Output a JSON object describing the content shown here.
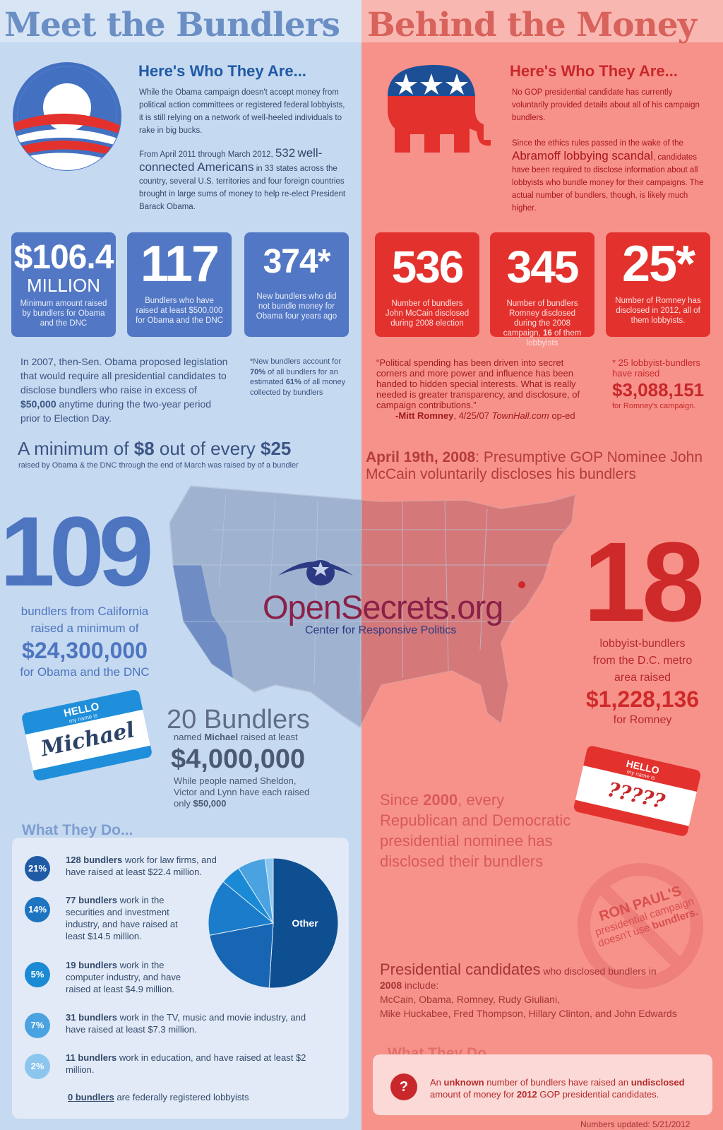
{
  "left": {
    "title": "Meet the Bundlers",
    "heading": "Here's Who They Are...",
    "intro_p1": "While the Obama campaign doesn't accept money from political action committees or registered federal lobbyists, it is still relying on a network of well-heeled individuals to rake in big bucks.",
    "intro_p2_pre": "From April 2011 through March 2012,",
    "intro_p2_num": "532",
    "intro_p2_emph": "well-connected Americans",
    "intro_p2_post": "in 33 states across the country, several U.S. territories and four foreign countries brought in large sums of money to help re-elect President Barack Obama.",
    "stats": [
      {
        "big": "$106.4",
        "sub": "MILLION",
        "desc": "Minimum amount raised by bundlers for Obama and the DNC"
      },
      {
        "big": "117",
        "sub": "",
        "desc": "Bundlers who have raised at least $500,000 for Obama and the DNC"
      },
      {
        "big": "374*",
        "sub": "",
        "desc": "New bundlers who did not bundle money for Obama four years ago"
      }
    ],
    "legislation_a": "In 2007, then-Sen. Obama proposed legislation that would require all presidential candidates to disclose bundlers who raise in excess of",
    "legislation_b": "$50,000",
    "legislation_c": "anytime during the two-year period prior to Election Day.",
    "footnote_a": "*New bundlers account for",
    "footnote_b": "70%",
    "footnote_c": "of all bundlers for an estimated",
    "footnote_d": "61%",
    "footnote_e": "of all money collected by bundlers",
    "minimum_a": "A minimum of",
    "minimum_b": "$8",
    "minimum_c": "out of every",
    "minimum_d": "$25",
    "minimum_sub": "raised by Obama & the DNC through the end of March was raised by of a bundler",
    "ca_big": "109",
    "ca_line1": "bundlers from California",
    "ca_line2": "raised a minimum of",
    "ca_amount": "$24,300,000",
    "ca_line3": "for Obama and the DNC",
    "tag_hello": "HELLO",
    "tag_myname": "my name is",
    "tag_name": "Michael",
    "michael_big": "20 Bundlers",
    "michael_a": "named",
    "michael_b": "Michael",
    "michael_c": "raised at least",
    "michael_amount": "$4,000,000",
    "michael_tail_a": "While people named Sheldon, Victor and Lynn have each raised only",
    "michael_tail_b": "$50,000",
    "what_heading": "What They Do...",
    "rows": [
      {
        "pct": "21%",
        "bold": "128 bundlers",
        "text": "work for law firms, and have raised at least $22.4 million."
      },
      {
        "pct": "14%",
        "bold": "77 bundlers",
        "text": "work in the securities and investment industry, and have raised at least $14.5 million."
      },
      {
        "pct": "5%",
        "bold": "19 bundlers",
        "text": "work in the computer industry, and have raised at least $4.9 million."
      },
      {
        "pct": "7%",
        "bold": "31 bundlers",
        "text": "work in the TV, music and movie industry, and have raised at least $7.3 million."
      },
      {
        "pct": "2%",
        "bold": "11 bundlers",
        "text": "work in education, and have raised at least $2 million."
      }
    ],
    "lobbyists_bold": "0 bundlers",
    "lobbyists_text": "are federally registered lobbyists",
    "pie_label": "Other"
  },
  "right": {
    "title": "Behind the Money",
    "heading": "Here's Who They Are...",
    "intro_p1": "No GOP presidential candidate has currently voluntarily provided details about all of his campaign bundlers.",
    "intro_p2_pre": "Since the ethics rules passed in the wake of the",
    "intro_p2_emph": "Abramoff lobbying scandal",
    "intro_p2_post": ", candidates have been required to disclose information about all lobbyists who bundle money for their campaigns. The actual number of bundlers, though, is likely much higher.",
    "stats": [
      {
        "big": "536",
        "desc": "Number of bundlers John McCain disclosed during 2008 election",
        "desc_bold": ""
      },
      {
        "big": "345",
        "desc": "Number of bundlers Romney disclosed during the 2008 campaign,",
        "desc_bold": "16",
        "desc_tail": "of them lobbyists"
      },
      {
        "big": "25*",
        "desc": "Number of Romney has disclosed in 2012, all of them lobbyists.",
        "desc_bold": ""
      }
    ],
    "quote": "“Political spending has been driven into secret corners and more power and influence has been handed to hidden special interests. What is really needed is greater transparency, and disclosure, of campaign contributions.”",
    "quote_attrib_name": "-Mitt Romney",
    "quote_attrib_date": ", 4/25/07",
    "quote_attrib_src": "TownHall.com",
    "quote_attrib_tail": "op-ed",
    "footnote_a": "* 25 lobbyist-bundlers have raised",
    "footnote_amount": "$3,088,151",
    "footnote_b": "for Romney's campaign.",
    "april_a": "April 19th, 2008",
    "april_b": ": Presumptive GOP Nominee John McCain voluntarily discloses his bundlers",
    "dc_big": "18",
    "dc_line1": "lobbyist-bundlers",
    "dc_line2": "from the D.C. metro",
    "dc_line3": "area raised",
    "dc_amount": "$1,228,136",
    "dc_line4": "for Romney",
    "tag_hello": "HELLO",
    "tag_myname": "my name is",
    "tag_name": "?????",
    "since_a": "Since",
    "since_b": "2000",
    "since_c": ", every Republican and Democratic presidential nominee has disclosed their bundlers",
    "paul_a": "RON PAUL'S",
    "paul_b": "presidential campaign",
    "paul_c": "doesn't use",
    "paul_d": "bundlers.",
    "cands_a": "Presidential candidates",
    "cands_b": "who disclosed bundlers in",
    "cands_c": "2008",
    "cands_d": "include:",
    "cands_list1": "McCain, Obama, Romney, Rudy Giuliani,",
    "cands_list2": "Mike Huckabee, Fred Thompson, Hillary Clinton, and John Edwards",
    "what_heading": "What They Do...",
    "unknown_a": "An",
    "unknown_b": "unknown",
    "unknown_c": "number of bundlers have raised an",
    "unknown_d": "undisclosed",
    "unknown_e": "amount of money for",
    "unknown_f": "2012",
    "unknown_g": "GOP presidential candidates.",
    "q_mark": "?",
    "updated": "Numbers updated:  5/21/2012"
  },
  "center": {
    "brand": "OpenSecrets.org",
    "brand_sub": "Center for Responsive Politics"
  },
  "colors": {
    "blue_bg": "#c5d9f0",
    "red_bg": "#f7928a",
    "blue_accent": "#4d75c0",
    "red_accent": "#cf2a2a"
  },
  "chart_data": {
    "type": "pie",
    "categories": [
      "Law firms",
      "Securities and investment",
      "Computer industry",
      "TV, music and movie",
      "Education",
      "Other"
    ],
    "values": [
      21,
      14,
      5,
      7,
      2,
      51
    ]
  }
}
